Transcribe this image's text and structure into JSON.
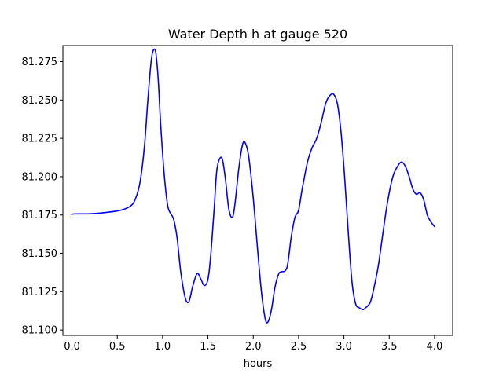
{
  "chart_data": {
    "type": "line",
    "title": "Water Depth h at gauge 520",
    "xlabel": "hours",
    "ylabel": "",
    "xlim": [
      -0.1,
      4.2
    ],
    "ylim": [
      81.0965,
      81.2855
    ],
    "xticks": [
      0.0,
      0.5,
      1.0,
      1.5,
      2.0,
      2.5,
      3.0,
      3.5,
      4.0
    ],
    "xtick_labels": [
      "0.0",
      "0.5",
      "1.0",
      "1.5",
      "2.0",
      "2.5",
      "3.0",
      "3.5",
      "4.0"
    ],
    "yticks": [
      81.1,
      81.125,
      81.15,
      81.175,
      81.2,
      81.225,
      81.25,
      81.275
    ],
    "ytick_labels": [
      "81.100",
      "81.125",
      "81.150",
      "81.175",
      "81.200",
      "81.225",
      "81.250",
      "81.275"
    ],
    "grid": false,
    "series": [
      {
        "color": "#0000ff",
        "points": [
          [
            0.0,
            81.175
          ],
          [
            0.02,
            81.1757
          ],
          [
            0.2,
            81.1758
          ],
          [
            0.4,
            81.1768
          ],
          [
            0.55,
            81.1783
          ],
          [
            0.65,
            81.181
          ],
          [
            0.7,
            81.1855
          ],
          [
            0.75,
            81.196
          ],
          [
            0.8,
            81.22
          ],
          [
            0.84,
            81.252
          ],
          [
            0.88,
            81.278
          ],
          [
            0.92,
            81.2822
          ],
          [
            0.95,
            81.265
          ],
          [
            0.98,
            81.233
          ],
          [
            1.02,
            81.2
          ],
          [
            1.06,
            81.18
          ],
          [
            1.12,
            81.1725
          ],
          [
            1.16,
            81.16
          ],
          [
            1.2,
            81.138
          ],
          [
            1.25,
            81.121
          ],
          [
            1.29,
            81.1185
          ],
          [
            1.33,
            81.128
          ],
          [
            1.38,
            81.1368
          ],
          [
            1.42,
            81.1335
          ],
          [
            1.46,
            81.129
          ],
          [
            1.5,
            81.133
          ],
          [
            1.53,
            81.148
          ],
          [
            1.57,
            81.18
          ],
          [
            1.6,
            81.205
          ],
          [
            1.65,
            81.2125
          ],
          [
            1.69,
            81.2
          ],
          [
            1.73,
            81.179
          ],
          [
            1.77,
            81.1735
          ],
          [
            1.8,
            81.183
          ],
          [
            1.84,
            81.205
          ],
          [
            1.88,
            81.2205
          ],
          [
            1.91,
            81.2222
          ],
          [
            1.95,
            81.213
          ],
          [
            2.0,
            81.186
          ],
          [
            2.05,
            81.151
          ],
          [
            2.09,
            81.125
          ],
          [
            2.13,
            81.108
          ],
          [
            2.16,
            81.105
          ],
          [
            2.2,
            81.113
          ],
          [
            2.24,
            81.128
          ],
          [
            2.28,
            81.1365
          ],
          [
            2.31,
            81.138
          ],
          [
            2.35,
            81.1385
          ],
          [
            2.38,
            81.143
          ],
          [
            2.42,
            81.161
          ],
          [
            2.46,
            81.1735
          ],
          [
            2.5,
            81.178
          ],
          [
            2.54,
            81.192
          ],
          [
            2.6,
            81.21
          ],
          [
            2.65,
            81.219
          ],
          [
            2.7,
            81.225
          ],
          [
            2.75,
            81.2355
          ],
          [
            2.8,
            81.248
          ],
          [
            2.85,
            81.2532
          ],
          [
            2.89,
            81.2535
          ],
          [
            2.93,
            81.247
          ],
          [
            2.97,
            81.228
          ],
          [
            3.01,
            81.198
          ],
          [
            3.05,
            81.162
          ],
          [
            3.09,
            81.131
          ],
          [
            3.13,
            81.117
          ],
          [
            3.17,
            81.1145
          ],
          [
            3.21,
            81.1133
          ],
          [
            3.24,
            81.1145
          ],
          [
            3.29,
            81.118
          ],
          [
            3.33,
            81.127
          ],
          [
            3.38,
            81.142
          ],
          [
            3.43,
            81.163
          ],
          [
            3.48,
            81.183
          ],
          [
            3.54,
            81.2
          ],
          [
            3.6,
            81.2075
          ],
          [
            3.64,
            81.2095
          ],
          [
            3.68,
            81.2065
          ],
          [
            3.72,
            81.2
          ],
          [
            3.76,
            81.192
          ],
          [
            3.8,
            81.1885
          ],
          [
            3.84,
            81.1895
          ],
          [
            3.88,
            81.185
          ],
          [
            3.92,
            81.175
          ],
          [
            3.96,
            81.1705
          ],
          [
            4.0,
            81.1675
          ]
        ]
      }
    ]
  }
}
